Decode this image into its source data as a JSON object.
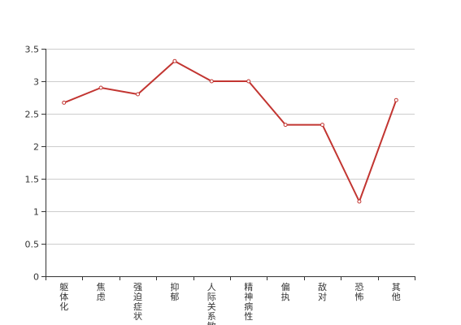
{
  "chart_data": {
    "type": "line",
    "categories": [
      "躯体化",
      "焦虑",
      "强迫症状",
      "抑郁",
      "人际关系敏感",
      "精神病性",
      "偏执",
      "敌对",
      "恐怖",
      "其他"
    ],
    "series": [
      {
        "values": [
          2.67,
          2.9,
          2.8,
          3.31,
          3.0,
          3.0,
          2.33,
          2.33,
          1.15,
          2.71
        ],
        "color": "#c23531"
      }
    ],
    "ylim": [
      0,
      3.5
    ],
    "yticks": [
      "0",
      "0.5",
      "1",
      "1.5",
      "2",
      "2.5",
      "3",
      "3.5"
    ],
    "grid": true,
    "xlabel": "",
    "ylabel": "",
    "title": ""
  }
}
